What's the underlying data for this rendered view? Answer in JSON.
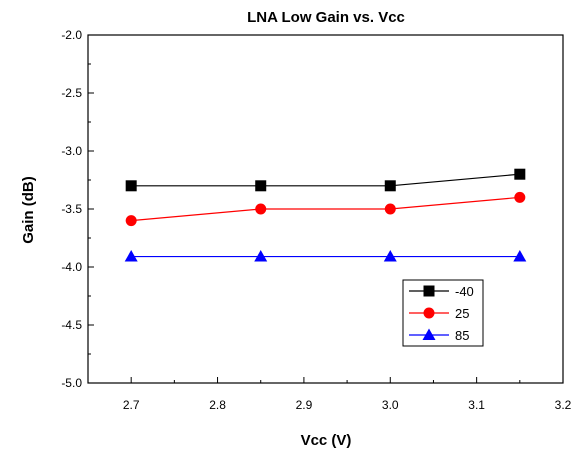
{
  "chart_data": {
    "type": "line",
    "title": "LNA Low Gain vs. Vcc",
    "xlabel": "Vcc (V)",
    "ylabel": "Gain (dB)",
    "xlim": [
      2.65,
      3.2
    ],
    "ylim": [
      -5.0,
      -2.0
    ],
    "x_ticks": [
      2.7,
      2.8,
      2.9,
      3.0,
      3.1,
      3.2
    ],
    "x_tick_labels": [
      "2.7",
      "2.8",
      "2.9",
      "3.0",
      "3.1",
      "3.2"
    ],
    "y_ticks": [
      -2.0,
      -2.5,
      -3.0,
      -3.5,
      -4.0,
      -4.5,
      -5.0
    ],
    "y_tick_labels": [
      "-2.0",
      "-2.5",
      "-3.0",
      "-3.5",
      "-4.0",
      "-4.5",
      "-5.0"
    ],
    "grid": false,
    "legend_position": "bottom-right",
    "x": [
      2.7,
      2.85,
      3.0,
      3.15
    ],
    "series": [
      {
        "name": "-40",
        "values": [
          -3.3,
          -3.3,
          -3.3,
          -3.2
        ],
        "color": "#000000",
        "marker": "square"
      },
      {
        "name": "25",
        "values": [
          -3.6,
          -3.5,
          -3.5,
          -3.4
        ],
        "color": "#ff0000",
        "marker": "circle"
      },
      {
        "name": "85",
        "values": [
          -3.91,
          -3.91,
          -3.91,
          -3.91
        ],
        "color": "#0000ff",
        "marker": "triangle"
      }
    ]
  }
}
